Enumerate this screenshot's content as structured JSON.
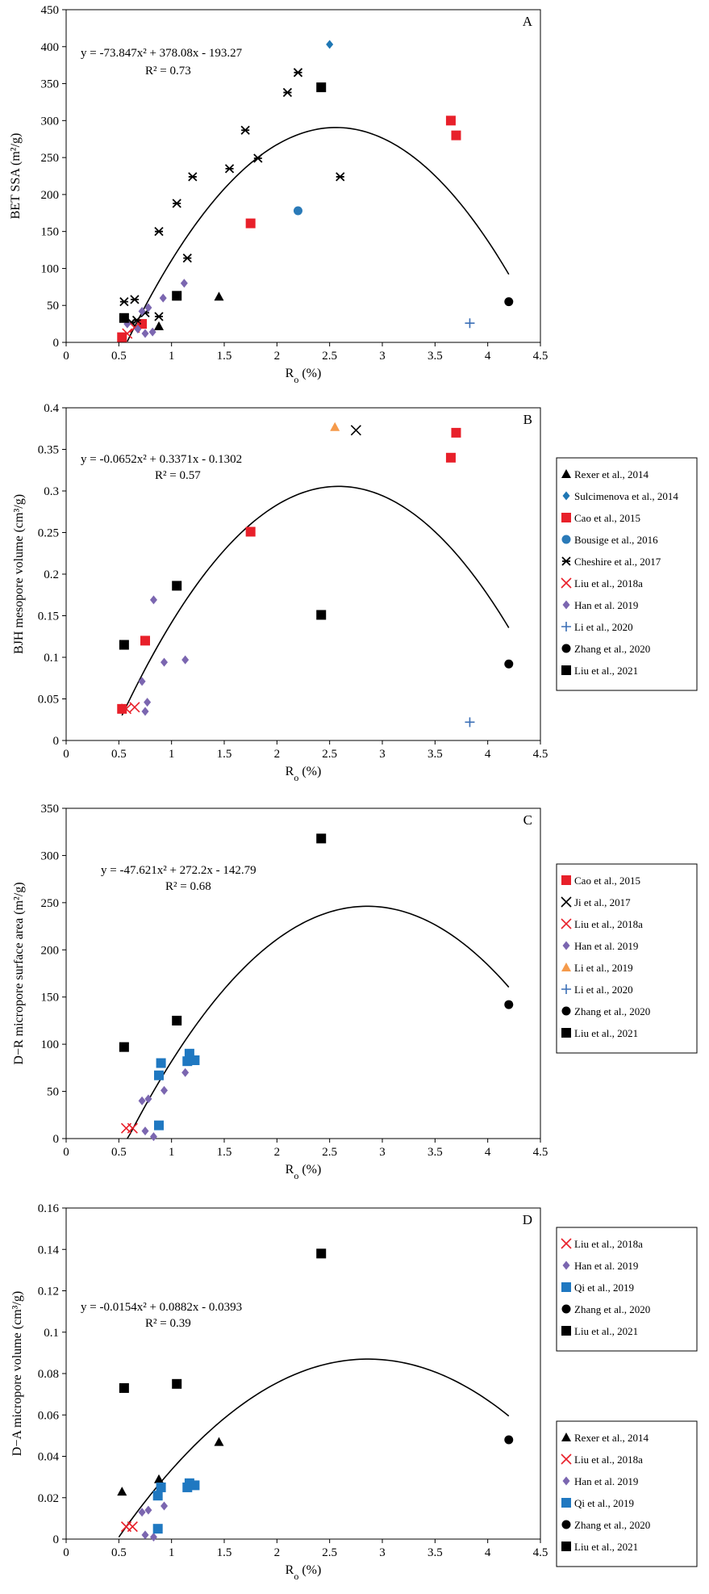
{
  "chart_data": [
    {
      "panel_label": "A",
      "type": "scatter",
      "xlabel_main": "R",
      "xlabel_sub": "o",
      "xlabel_tail": " (%)",
      "ylabel": "BET SSA  (m²/g)",
      "xlim": [
        0,
        4.5
      ],
      "ylim": [
        0,
        450
      ],
      "x_ticks": [
        "0",
        "0.5",
        "1",
        "1.5",
        "2",
        "2.5",
        "3",
        "3.5",
        "4",
        "4.5"
      ],
      "y_ticks": [
        "0",
        "50",
        "100",
        "150",
        "200",
        "250",
        "300",
        "350",
        "400",
        "450"
      ],
      "equation": "y = -73.847x² + 378.08x - 193.27",
      "r2": "R² = 0.73",
      "fit": {
        "a": -73.847,
        "b": 378.08,
        "c": -193.27,
        "x_range": [
          0.58,
          4.2
        ]
      },
      "series": [
        {
          "name": "Rexer et al., 2014",
          "marker": "triangle",
          "color": "#000000",
          "points": [
            [
              0.88,
              22
            ],
            [
              1.45,
              62
            ]
          ]
        },
        {
          "name": "Sulcimenova et al., 2014",
          "marker": "diamond",
          "color": "#1f77b4",
          "points": [
            [
              2.5,
              403
            ]
          ]
        },
        {
          "name": "Cao et al., 2015",
          "marker": "square",
          "color": "#e8202a",
          "points": [
            [
              0.53,
              7
            ],
            [
              0.72,
              25
            ],
            [
              1.75,
              161
            ],
            [
              3.65,
              300
            ],
            [
              3.7,
              280
            ]
          ]
        },
        {
          "name": "Bousige et al., 2016",
          "marker": "circle",
          "color": "#2a7ab8",
          "points": [
            [
              2.2,
              178
            ]
          ]
        },
        {
          "name": "Cheshire et al., 2017",
          "marker": "star",
          "color": "#000000",
          "points": [
            [
              0.55,
              55
            ],
            [
              0.65,
              58
            ],
            [
              0.62,
              27
            ],
            [
              0.67,
              30
            ],
            [
              0.75,
              40
            ],
            [
              0.88,
              35
            ],
            [
              0.88,
              150
            ],
            [
              1.05,
              188
            ],
            [
              1.15,
              114
            ],
            [
              1.2,
              224
            ],
            [
              1.55,
              235
            ],
            [
              1.7,
              287
            ],
            [
              1.82,
              249
            ],
            [
              2.1,
              338
            ],
            [
              2.2,
              365
            ],
            [
              2.6,
              224
            ]
          ]
        },
        {
          "name": "Liu et al., 2018a",
          "marker": "x",
          "color": "#e8202a",
          "points": [
            [
              0.58,
              12
            ],
            [
              0.65,
              20
            ]
          ]
        },
        {
          "name": "Han et al. 2019",
          "marker": "diamond",
          "color": "#7b66b0",
          "points": [
            [
              0.58,
              25
            ],
            [
              0.68,
              18
            ],
            [
              0.72,
              42
            ],
            [
              0.75,
              12
            ],
            [
              0.78,
              47
            ],
            [
              0.82,
              14
            ],
            [
              0.92,
              60
            ],
            [
              1.12,
              80
            ]
          ]
        },
        {
          "name": "Li et al., 2020",
          "marker": "plus",
          "color": "#3b6fb6",
          "points": [
            [
              3.83,
              26
            ]
          ]
        },
        {
          "name": "Zhang et al., 2020",
          "marker": "circle",
          "color": "#000000",
          "points": [
            [
              4.2,
              55
            ]
          ]
        },
        {
          "name": "Liu et al., 2021",
          "marker": "square",
          "color": "#000000",
          "points": [
            [
              0.55,
              33
            ],
            [
              1.05,
              63
            ],
            [
              2.42,
              345
            ]
          ]
        }
      ]
    },
    {
      "panel_label": "B",
      "type": "scatter",
      "xlabel_main": "R",
      "xlabel_sub": "o",
      "xlabel_tail": " (%)",
      "ylabel": "BJH mesopore volume  (cm³/g)",
      "xlim": [
        0,
        4.5
      ],
      "ylim": [
        0,
        0.4
      ],
      "x_ticks": [
        "0",
        "0.5",
        "1",
        "1.5",
        "2",
        "2.5",
        "3",
        "3.5",
        "4",
        "4.5"
      ],
      "y_ticks": [
        "0",
        "0.05",
        "0.1",
        "0.15",
        "0.2",
        "0.25",
        "0.3",
        "0.35",
        "0.4"
      ],
      "equation": "y = -0.0652x² + 0.3371x - 0.1302",
      "r2": "R² = 0.57",
      "fit": {
        "a": -0.0652,
        "b": 0.3371,
        "c": -0.1302,
        "x_range": [
          0.53,
          4.2
        ]
      },
      "series": [
        {
          "name": "Cao et al., 2015",
          "marker": "square",
          "color": "#e8202a",
          "points": [
            [
              0.53,
              0.038
            ],
            [
              0.75,
              0.12
            ],
            [
              1.75,
              0.251
            ],
            [
              3.65,
              0.34
            ],
            [
              3.7,
              0.37
            ]
          ]
        },
        {
          "name": "Ji et al., 2017",
          "marker": "x",
          "color": "#000000",
          "points": [
            [
              2.75,
              0.373
            ]
          ]
        },
        {
          "name": "Liu et al., 2018a",
          "marker": "x",
          "color": "#e8202a",
          "points": [
            [
              0.57,
              0.038
            ],
            [
              0.65,
              0.04
            ]
          ]
        },
        {
          "name": "Han et al. 2019",
          "marker": "diamond",
          "color": "#7b66b0",
          "points": [
            [
              0.72,
              0.071
            ],
            [
              0.75,
              0.035
            ],
            [
              0.77,
              0.046
            ],
            [
              0.83,
              0.169
            ],
            [
              0.93,
              0.094
            ],
            [
              1.13,
              0.097
            ]
          ]
        },
        {
          "name": "Li et al., 2019",
          "marker": "triangle",
          "color": "#f59a4b",
          "points": [
            [
              2.55,
              0.377
            ]
          ]
        },
        {
          "name": "Li et al., 2020",
          "marker": "plus",
          "color": "#3b6fb6",
          "points": [
            [
              3.83,
              0.022
            ]
          ]
        },
        {
          "name": "Zhang et al., 2020",
          "marker": "circle",
          "color": "#000000",
          "points": [
            [
              4.2,
              0.092
            ]
          ]
        },
        {
          "name": "Liu et al., 2021",
          "marker": "square",
          "color": "#000000",
          "points": [
            [
              0.55,
              0.115
            ],
            [
              1.05,
              0.186
            ],
            [
              2.42,
              0.151
            ]
          ]
        }
      ]
    },
    {
      "panel_label": "C",
      "type": "scatter",
      "xlabel_main": "R",
      "xlabel_sub": "o",
      "xlabel_tail": " (%)",
      "ylabel": "D−R micropore surface area (m²/g)",
      "xlim": [
        0,
        4.5
      ],
      "ylim": [
        0,
        350
      ],
      "x_ticks": [
        "0",
        "0.5",
        "1",
        "1.5",
        "2",
        "2.5",
        "3",
        "3.5",
        "4",
        "4.5"
      ],
      "y_ticks": [
        "0",
        "50",
        "100",
        "150",
        "200",
        "250",
        "300",
        "350"
      ],
      "equation": "y = -47.621x² + 272.2x - 142.79",
      "r2": "R² = 0.68",
      "fit": {
        "a": -47.621,
        "b": 272.2,
        "c": -142.79,
        "x_range": [
          0.58,
          4.2
        ]
      },
      "series": [
        {
          "name": "Liu et al., 2018a",
          "marker": "x",
          "color": "#e8202a",
          "points": [
            [
              0.57,
              11
            ],
            [
              0.63,
              11
            ]
          ]
        },
        {
          "name": "Han et al. 2019",
          "marker": "diamond",
          "color": "#7b66b0",
          "points": [
            [
              0.72,
              40
            ],
            [
              0.75,
              8
            ],
            [
              0.78,
              42
            ],
            [
              0.83,
              2
            ],
            [
              0.93,
              51
            ],
            [
              1.13,
              70
            ]
          ]
        },
        {
          "name": "Qi et al., 2019",
          "marker": "square",
          "color": "#1f78c1",
          "points": [
            [
              0.88,
              14
            ],
            [
              0.88,
              67
            ],
            [
              0.9,
              80
            ],
            [
              1.15,
              82
            ],
            [
              1.17,
              90
            ],
            [
              1.22,
              83
            ]
          ]
        },
        {
          "name": "Zhang et al., 2020",
          "marker": "circle",
          "color": "#000000",
          "points": [
            [
              4.2,
              142
            ]
          ]
        },
        {
          "name": "Liu et al., 2021",
          "marker": "square",
          "color": "#000000",
          "points": [
            [
              0.55,
              97
            ],
            [
              1.05,
              125
            ],
            [
              2.42,
              318
            ]
          ]
        }
      ]
    },
    {
      "panel_label": "D",
      "type": "scatter",
      "xlabel_main": "R",
      "xlabel_sub": "o",
      "xlabel_tail": " (%)",
      "ylabel": "D−A micropore volume (cm³/g)",
      "xlim": [
        0,
        4.5
      ],
      "ylim": [
        0,
        0.16
      ],
      "x_ticks": [
        "0",
        "0.5",
        "1",
        "1.5",
        "2",
        "2.5",
        "3",
        "3.5",
        "4",
        "4.5"
      ],
      "y_ticks": [
        "0",
        "0.02",
        "0.04",
        "0.06",
        "0.08",
        "0.1",
        "0.12",
        "0.14",
        "0.16"
      ],
      "equation": "y = -0.0154x² + 0.0882x - 0.0393",
      "r2": "R² = 0.39",
      "fit": {
        "a": -0.0154,
        "b": 0.0882,
        "c": -0.0393,
        "x_range": [
          0.5,
          4.2
        ]
      },
      "series": [
        {
          "name": "Rexer et al., 2014",
          "marker": "triangle",
          "color": "#000000",
          "points": [
            [
              0.53,
              0.023
            ],
            [
              0.88,
              0.029
            ],
            [
              1.45,
              0.047
            ]
          ]
        },
        {
          "name": "Liu et al., 2018a",
          "marker": "x",
          "color": "#e8202a",
          "points": [
            [
              0.57,
              0.006
            ],
            [
              0.63,
              0.006
            ]
          ]
        },
        {
          "name": "Han et al. 2019",
          "marker": "diamond",
          "color": "#7b66b0",
          "points": [
            [
              0.72,
              0.013
            ],
            [
              0.75,
              0.002
            ],
            [
              0.78,
              0.014
            ],
            [
              0.83,
              0.001
            ],
            [
              0.93,
              0.016
            ]
          ]
        },
        {
          "name": "Qi et al., 2019",
          "marker": "square",
          "color": "#1f78c1",
          "points": [
            [
              0.87,
              0.005
            ],
            [
              0.87,
              0.021
            ],
            [
              0.9,
              0.025
            ],
            [
              1.15,
              0.025
            ],
            [
              1.17,
              0.027
            ],
            [
              1.22,
              0.026
            ]
          ]
        },
        {
          "name": "Zhang et al., 2020",
          "marker": "circle",
          "color": "#000000",
          "points": [
            [
              4.2,
              0.048
            ]
          ]
        },
        {
          "name": "Liu et al., 2021",
          "marker": "square",
          "color": "#000000",
          "points": [
            [
              0.55,
              0.073
            ],
            [
              1.05,
              0.075
            ],
            [
              2.42,
              0.138
            ]
          ]
        }
      ]
    }
  ]
}
